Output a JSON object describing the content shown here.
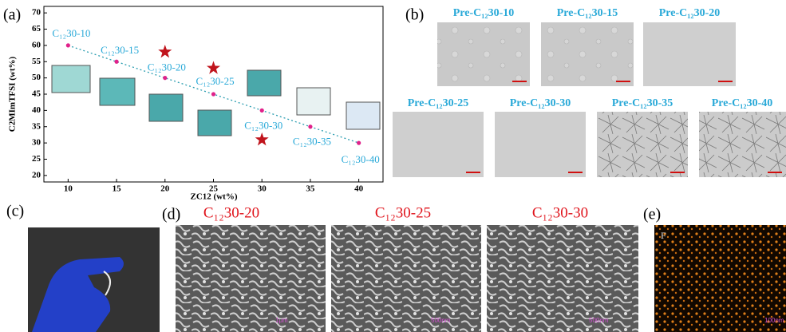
{
  "chart_data": {
    "type": "scatter",
    "xlabel": "ZC12 (wt%)",
    "ylabel": "C2MImTFSI (wt%)",
    "x": [
      10,
      15,
      20,
      25,
      30,
      35,
      40
    ],
    "values": [
      60,
      55,
      50,
      45,
      40,
      35,
      30
    ],
    "color": "#e0218a",
    "point_labels": [
      "C₁₂30-10",
      "C₁₂30-15",
      "C₁₂30-20",
      "C₁₂30-25",
      "C₁₂30-30",
      "C₁₂30-35",
      "C₁₂30-40"
    ],
    "trendline": true,
    "trend_color": "#2a9db0",
    "stars": {
      "x": [
        20,
        25,
        30
      ],
      "y": [
        58,
        53,
        31
      ],
      "color": "#c0141c"
    },
    "xlim": [
      7.5,
      42.5
    ],
    "ylim": [
      18,
      72
    ],
    "xticks": [
      10,
      15,
      20,
      25,
      30,
      35,
      40
    ],
    "yticks": [
      20,
      25,
      30,
      35,
      40,
      45,
      50,
      55,
      60,
      65,
      70
    ]
  },
  "panel_labels": [
    "(a)",
    "(b)",
    "(c)",
    "(d)",
    "(e)"
  ],
  "panel_b": {
    "titles": [
      "Pre-C₁₂30-10",
      "Pre-C₁₂30-15",
      "Pre-C₁₂30-20",
      "Pre-C₁₂30-25",
      "Pre-C₁₂30-30",
      "Pre-C₁₂30-35",
      "Pre-C₁₂30-40"
    ]
  },
  "panel_d": {
    "titles": [
      "C₁₂30-20",
      "C₁₂30-25",
      "C₁₂30-30"
    ],
    "scale_labels": [
      "1μm",
      "500nm",
      "500nm"
    ]
  },
  "panel_e": {
    "element": "F",
    "scale_label": "100nm"
  }
}
